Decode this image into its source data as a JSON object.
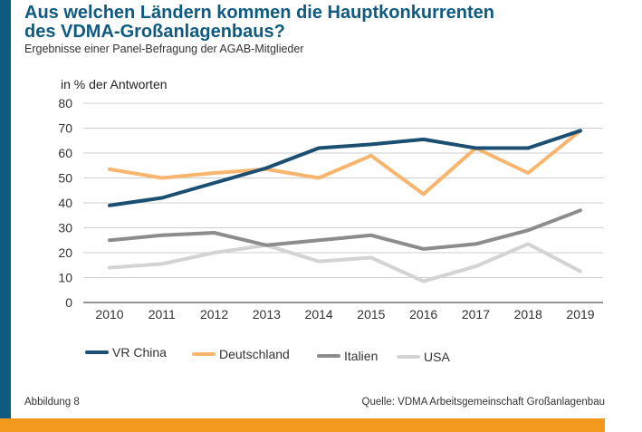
{
  "header": {
    "title_line1": "Aus welchen Ländern kommen die Hauptkonkurrenten",
    "title_line2": "des VDMA-Großanlagenbaus?",
    "subtitle": "Ergebnisse einer Panel-Befragung der AGAB-Mitglieder"
  },
  "footer": {
    "figure_label": "Abbildung 8",
    "source": "Quelle: VDMA Arbeitsgemeinschaft Großanlagenbau"
  },
  "colors": {
    "brand_blue": "#0e5a80",
    "brand_orange": "#f39a1e"
  },
  "chart_data": {
    "type": "line",
    "title": "Aus welchen Ländern kommen die Hauptkonkurrenten des VDMA-Großanlagenbaus?",
    "ylabel": "in % der Antworten",
    "xlabel": "",
    "x": [
      "2010",
      "2011",
      "2012",
      "2013",
      "2014",
      "2015",
      "2016",
      "2017",
      "2018",
      "2019"
    ],
    "ylim": [
      0,
      80
    ],
    "yticks": [
      0,
      10,
      20,
      30,
      40,
      50,
      60,
      70,
      80
    ],
    "grid": true,
    "legend_position": "bottom",
    "series": [
      {
        "name": "VR China",
        "color": "#1b4f72",
        "values": [
          39,
          42,
          48,
          54,
          62,
          63.5,
          65.5,
          62,
          62,
          69
        ]
      },
      {
        "name": "Deutschland",
        "color": "#f7b56e",
        "values": [
          53.5,
          50,
          52,
          53.5,
          50,
          59,
          43.5,
          62,
          52,
          69
        ]
      },
      {
        "name": "Italien",
        "color": "#8c8c8c",
        "values": [
          25,
          27,
          28,
          23,
          25,
          27,
          21.5,
          23.5,
          29,
          37
        ]
      },
      {
        "name": "USA",
        "color": "#d3d3d3",
        "values": [
          14,
          15.5,
          20,
          23,
          16.5,
          18,
          8.5,
          14.5,
          23.5,
          12.5
        ]
      }
    ]
  }
}
